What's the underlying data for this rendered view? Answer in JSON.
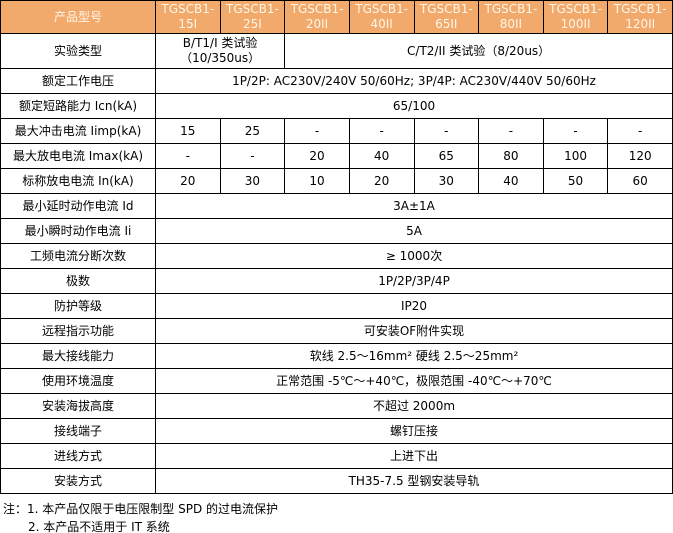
{
  "colors": {
    "header_bg": "#F2A96C",
    "header_text": "#FFF6E8",
    "border": "#000000"
  },
  "table": {
    "header_label": "产品型号",
    "models": [
      "TGSCB1-15I",
      "TGSCB1-25I",
      "TGSCB1-20II",
      "TGSCB1-40II",
      "TGSCB1-65II",
      "TGSCB1-80II",
      "TGSCB1-100II",
      "TGSCB1-120II"
    ],
    "rows": {
      "test_type": {
        "label": "实验类型",
        "class_b": "B/T1/I 类试验（10/350us）",
        "class_c": "C/T2/II 类试验（8/20us）"
      },
      "rated_voltage": {
        "label": "额定工作电压",
        "value": "1P/2P: AC230V/240V 50/60Hz; 3P/4P: AC230V/440V 50/60Hz"
      },
      "icn": {
        "label": "额定短路能力 Icn(kA)",
        "value": "65/100"
      },
      "iimp": {
        "label": "最大冲击电流 Iimp(kA)",
        "values": [
          "15",
          "25",
          "-",
          "-",
          "-",
          "-",
          "-",
          "-"
        ]
      },
      "imax": {
        "label": "最大放电电流 Imax(kA)",
        "values": [
          "-",
          "-",
          "20",
          "40",
          "65",
          "80",
          "100",
          "120"
        ]
      },
      "inom": {
        "label": "标称放电电流 In(kA)",
        "values": [
          "20",
          "30",
          "10",
          "20",
          "30",
          "40",
          "50",
          "60"
        ]
      },
      "min_delay_current": {
        "label": "最小延时动作电流 Id",
        "value": "3A±1A"
      },
      "min_instant_current": {
        "label": "最小瞬时动作电流 Ii",
        "value": "5A"
      },
      "breaking_times": {
        "label": "工频电流分断次数",
        "value": "≥ 1000次"
      },
      "poles": {
        "label": "极数",
        "value": "1P/2P/3P/4P"
      },
      "ip_rating": {
        "label": "防护等级",
        "value": "IP20"
      },
      "remote_indication": {
        "label": "远程指示功能",
        "value": "可安装OF附件实现"
      },
      "max_wiring": {
        "label": "最大接线能力",
        "value": "软线 2.5～16mm²  硬线 2.5～25mm²"
      },
      "ambient_temp": {
        "label": "使用环境温度",
        "value": "正常范围 -5℃～+40℃，极限范围 -40℃～+70℃"
      },
      "altitude": {
        "label": "安装海拔高度",
        "value": "不超过 2000m"
      },
      "terminal": {
        "label": "接线端子",
        "value": "螺钉压接"
      },
      "wire_entry": {
        "label": "进线方式",
        "value": "上进下出"
      },
      "mounting": {
        "label": "安装方式",
        "value": "TH35-7.5 型钢安装导轨"
      }
    }
  },
  "notes": {
    "prefix": "注：",
    "line1": "1. 本产品仅限于电压限制型 SPD 的过电流保护",
    "line2": "2. 本产品不适用于 IT 系统"
  }
}
